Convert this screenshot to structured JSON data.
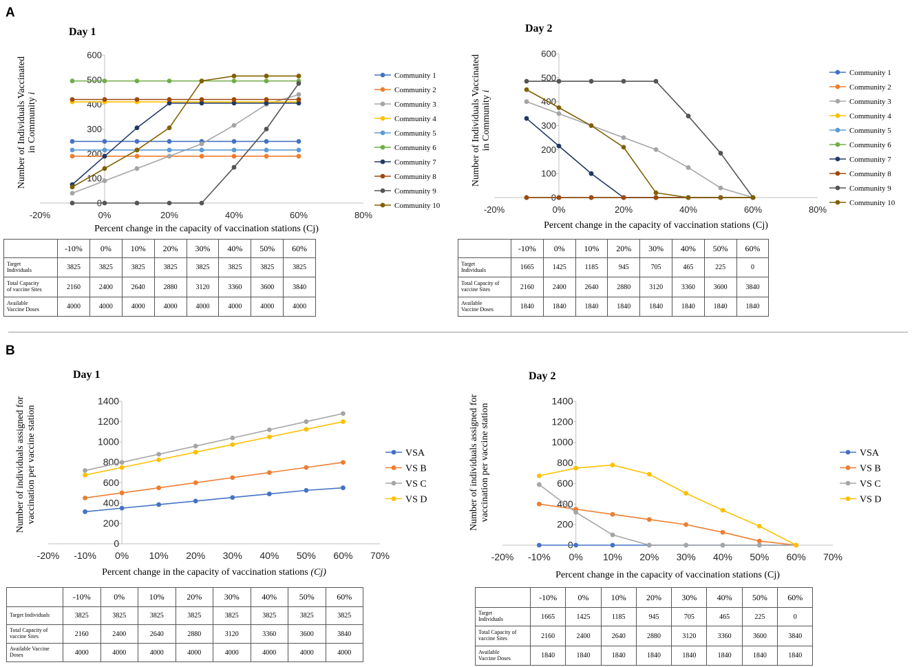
{
  "figure": {
    "panels": [
      {
        "letter": "A"
      },
      {
        "letter": "B"
      }
    ]
  },
  "chart_data": [
    {
      "type": "line",
      "title": "Day 1",
      "xlabel": "Percent change in the capacity of vaccination stations (Cj)",
      "ylabel_lines": [
        "Number of Individuals Vaccinated",
        "in Community "
      ],
      "ylabel_italic": "i",
      "x": [
        -10,
        0,
        10,
        20,
        30,
        40,
        50,
        60
      ],
      "xlim": [
        -20,
        80
      ],
      "xticks": [
        -20,
        0,
        20,
        40,
        60,
        80
      ],
      "xtick_labels": [
        "-20%",
        "0%",
        "20%",
        "40%",
        "60%",
        "80%"
      ],
      "ylim": [
        0,
        600
      ],
      "yticks": [
        0,
        100,
        200,
        300,
        400,
        500,
        600
      ],
      "ytick_labels": [
        "0",
        "100",
        "200",
        "300",
        "400",
        "500",
        "600"
      ],
      "legend_position": "right",
      "series": [
        {
          "name": "Community 1",
          "color": "#4472C4",
          "values": [
            250,
            250,
            250,
            250,
            250,
            250,
            250,
            250
          ]
        },
        {
          "name": "Community 2",
          "color": "#ED7D31",
          "values": [
            190,
            190,
            190,
            190,
            190,
            190,
            190,
            190
          ]
        },
        {
          "name": "Community 3",
          "color": "#A5A5A5",
          "values": [
            40,
            90,
            140,
            190,
            240,
            315,
            400,
            440
          ]
        },
        {
          "name": "Community 4",
          "color": "#FFC000",
          "values": [
            410,
            410,
            410,
            410,
            410,
            410,
            410,
            410
          ]
        },
        {
          "name": "Community 5",
          "color": "#5B9BD5",
          "values": [
            215,
            215,
            215,
            215,
            215,
            215,
            215,
            215
          ]
        },
        {
          "name": "Community 6",
          "color": "#70AD47",
          "values": [
            495,
            495,
            495,
            495,
            495,
            495,
            495,
            495
          ]
        },
        {
          "name": "Community 7",
          "color": "#203864",
          "values": [
            75,
            190,
            305,
            405,
            405,
            405,
            405,
            405
          ]
        },
        {
          "name": "Community 8",
          "color": "#9E480E",
          "values": [
            420,
            420,
            420,
            420,
            420,
            420,
            420,
            420
          ]
        },
        {
          "name": "Community 9",
          "color": "#555555",
          "values": [
            0,
            0,
            0,
            0,
            0,
            145,
            300,
            485
          ]
        },
        {
          "name": "Community 10",
          "color": "#806000",
          "values": [
            65,
            140,
            215,
            305,
            495,
            515,
            515,
            515
          ]
        }
      ]
    },
    {
      "type": "line",
      "title": "Day 2",
      "xlabel": "Percent change in the capacity of vaccination stations (Cj)",
      "ylabel_lines": [
        "Number of Individuals Vaccinated",
        "in Community "
      ],
      "ylabel_italic": "i",
      "x": [
        -10,
        0,
        10,
        20,
        30,
        40,
        50,
        60
      ],
      "xlim": [
        -20,
        80
      ],
      "xticks": [
        -20,
        0,
        20,
        40,
        60,
        80
      ],
      "xtick_labels": [
        "-20%",
        "0%",
        "20%",
        "40%",
        "60%",
        "80%"
      ],
      "ylim": [
        0,
        600
      ],
      "yticks": [
        0,
        100,
        200,
        300,
        400,
        500,
        600
      ],
      "ytick_labels": [
        "0",
        "100",
        "200",
        "300",
        "400",
        "500",
        "600"
      ],
      "legend_position": "right",
      "series": [
        {
          "name": "Community 1",
          "color": "#4472C4",
          "values": [
            0,
            0,
            0,
            0,
            0,
            0,
            0,
            0
          ]
        },
        {
          "name": "Community 2",
          "color": "#ED7D31",
          "values": [
            0,
            0,
            0,
            0,
            0,
            0,
            0,
            0
          ]
        },
        {
          "name": "Community 3",
          "color": "#A5A5A5",
          "values": [
            400,
            350,
            300,
            250,
            200,
            125,
            40,
            0
          ]
        },
        {
          "name": "Community 4",
          "color": "#FFC000",
          "values": [
            0,
            0,
            0,
            0,
            0,
            0,
            0,
            0
          ]
        },
        {
          "name": "Community 5",
          "color": "#5B9BD5",
          "values": [
            0,
            0,
            0,
            0,
            0,
            0,
            0,
            0
          ]
        },
        {
          "name": "Community 6",
          "color": "#70AD47",
          "values": [
            0,
            0,
            0,
            0,
            0,
            0,
            0,
            0
          ]
        },
        {
          "name": "Community 7",
          "color": "#203864",
          "values": [
            330,
            215,
            100,
            0,
            0,
            0,
            0,
            0
          ]
        },
        {
          "name": "Community 8",
          "color": "#9E480E",
          "values": [
            0,
            0,
            0,
            0,
            0,
            0,
            0,
            0
          ]
        },
        {
          "name": "Community 9",
          "color": "#555555",
          "values": [
            485,
            485,
            485,
            485,
            485,
            340,
            185,
            0
          ]
        },
        {
          "name": "Community 10",
          "color": "#806000",
          "values": [
            450,
            375,
            300,
            210,
            20,
            0,
            0,
            0
          ]
        }
      ]
    },
    {
      "type": "line",
      "title": "Day 1",
      "xlabel": "Percent change in the capacity of vaccination stations ",
      "xlabel_italic": "(Cj)",
      "ylabel_lines": [
        "Number of individuals assigned for",
        "vaccination per vaccine station"
      ],
      "ylabel_italic": "",
      "x": [
        -10,
        0,
        10,
        20,
        30,
        40,
        50,
        60
      ],
      "xlim": [
        -20,
        70
      ],
      "xticks": [
        -20,
        -10,
        0,
        10,
        20,
        30,
        40,
        50,
        60,
        70
      ],
      "xtick_labels": [
        "-20%",
        "-10%",
        "0%",
        "10%",
        "20%",
        "30%",
        "40%",
        "50%",
        "60%",
        "70%"
      ],
      "ylim": [
        0,
        1400
      ],
      "yticks": [
        0,
        200,
        400,
        600,
        800,
        1000,
        1200,
        1400
      ],
      "ytick_labels": [
        "0",
        "200",
        "400",
        "600",
        "800",
        "1000",
        "1200",
        "1400"
      ],
      "legend_position": "right",
      "series": [
        {
          "name": "VSA",
          "color": "#4472C4",
          "values": [
            315,
            350,
            385,
            420,
            455,
            490,
            525,
            550
          ]
        },
        {
          "name": "VS B",
          "color": "#ED7D31",
          "values": [
            450,
            500,
            550,
            600,
            650,
            700,
            750,
            800
          ]
        },
        {
          "name": "VS C",
          "color": "#A5A5A5",
          "values": [
            720,
            800,
            880,
            960,
            1040,
            1120,
            1200,
            1280
          ]
        },
        {
          "name": "VS D",
          "color": "#FFC000",
          "values": [
            675,
            750,
            825,
            900,
            975,
            1050,
            1125,
            1200
          ]
        }
      ]
    },
    {
      "type": "line",
      "title": "Day 2",
      "xlabel": "Percent change in the capacity of vaccination stations (Cj)",
      "ylabel_lines": [
        "Number of individuals assigned for",
        "vaccination per vaccine station"
      ],
      "ylabel_italic": "",
      "x": [
        -10,
        0,
        10,
        20,
        30,
        40,
        50,
        60
      ],
      "xlim": [
        -20,
        70
      ],
      "xticks": [
        -20,
        -10,
        0,
        10,
        20,
        30,
        40,
        50,
        60,
        70
      ],
      "xtick_labels": [
        "-20%",
        "-10%",
        "0%",
        "10%",
        "20%",
        "30%",
        "40%",
        "50%",
        "60%",
        "70%"
      ],
      "ylim": [
        0,
        1400
      ],
      "yticks": [
        0,
        200,
        400,
        600,
        800,
        1000,
        1200,
        1400
      ],
      "ytick_labels": [
        "0",
        "200",
        "400",
        "600",
        "800",
        "1000",
        "1200",
        "1400"
      ],
      "legend_position": "right",
      "series": [
        {
          "name": "VSA",
          "color": "#4472C4",
          "values": [
            0,
            0,
            0,
            0,
            0,
            0,
            0,
            0
          ]
        },
        {
          "name": "VS B",
          "color": "#ED7D31",
          "values": [
            400,
            350,
            300,
            250,
            200,
            125,
            40,
            0
          ]
        },
        {
          "name": "VS C",
          "color": "#A5A5A5",
          "values": [
            590,
            320,
            100,
            0,
            0,
            0,
            0,
            0
          ]
        },
        {
          "name": "VS D",
          "color": "#FFC000",
          "values": [
            675,
            750,
            780,
            690,
            505,
            340,
            185,
            0
          ]
        }
      ]
    }
  ],
  "tables": [
    {
      "columns": [
        "-10%",
        "0%",
        "10%",
        "20%",
        "30%",
        "40%",
        "50%",
        "60%"
      ],
      "rows": [
        {
          "label_lines": [
            "Target",
            "Individuals"
          ],
          "values": [
            "3825",
            "3825",
            "3825",
            "3825",
            "3825",
            "3825",
            "3825",
            "3825"
          ]
        },
        {
          "label_lines": [
            "Total Capacity",
            "of vaccine Sites"
          ],
          "values": [
            "2160",
            "2400",
            "2640",
            "2880",
            "3120",
            "3360",
            "3600",
            "3840"
          ]
        },
        {
          "label_lines": [
            "Available",
            "Vaccine Doses"
          ],
          "values": [
            "4000",
            "4000",
            "4000",
            "4000",
            "4000",
            "4000",
            "4000",
            "4000"
          ]
        }
      ]
    },
    {
      "columns": [
        "-10%",
        "0%",
        "10%",
        "20%",
        "30%",
        "40%",
        "50%",
        "60%"
      ],
      "rows": [
        {
          "label_lines": [
            "Target",
            "Individuals"
          ],
          "values": [
            "1665",
            "1425",
            "1185",
            "945",
            "705",
            "465",
            "225",
            "0"
          ]
        },
        {
          "label_lines": [
            "Total Capacity of",
            "vaccine Sites"
          ],
          "values": [
            "2160",
            "2400",
            "2640",
            "2880",
            "3120",
            "3360",
            "3600",
            "3840"
          ]
        },
        {
          "label_lines": [
            "Available",
            "Vaccine Doses"
          ],
          "values": [
            "1840",
            "1840",
            "1840",
            "1840",
            "1840",
            "1840",
            "1840",
            "1840"
          ]
        }
      ]
    },
    {
      "columns": [
        "-10%",
        "0%",
        "10%",
        "20%",
        "30%",
        "40%",
        "50%",
        "60%"
      ],
      "rows": [
        {
          "label_lines": [
            "Target Individuals"
          ],
          "values": [
            "3825",
            "3825",
            "3825",
            "3825",
            "3825",
            "3825",
            "3825",
            "3825"
          ]
        },
        {
          "label_lines": [
            "Total Capacity of",
            "vaccine Sites"
          ],
          "values": [
            "2160",
            "2400",
            "2640",
            "2880",
            "3120",
            "3360",
            "3600",
            "3840"
          ]
        },
        {
          "label_lines": [
            "Available Vaccine",
            "Doses"
          ],
          "values": [
            "4000",
            "4000",
            "4000",
            "4000",
            "4000",
            "4000",
            "4000",
            "4000"
          ]
        }
      ]
    },
    {
      "columns": [
        "-10%",
        "0%",
        "10%",
        "20%",
        "30%",
        "40%",
        "50%",
        "60%"
      ],
      "rows": [
        {
          "label_lines": [
            "Target",
            "Individuals"
          ],
          "values": [
            "1665",
            "1425",
            "1185",
            "945",
            "705",
            "465",
            "225",
            "0"
          ]
        },
        {
          "label_lines": [
            "Total Capacity of",
            "vaccine Sites"
          ],
          "values": [
            "2160",
            "2400",
            "2640",
            "2880",
            "3120",
            "3360",
            "3600",
            "3840"
          ]
        },
        {
          "label_lines": [
            "Available",
            "Vaccine Doses"
          ],
          "values": [
            "1840",
            "1840",
            "1840",
            "1840",
            "1840",
            "1840",
            "1840",
            "1840"
          ]
        }
      ]
    }
  ]
}
